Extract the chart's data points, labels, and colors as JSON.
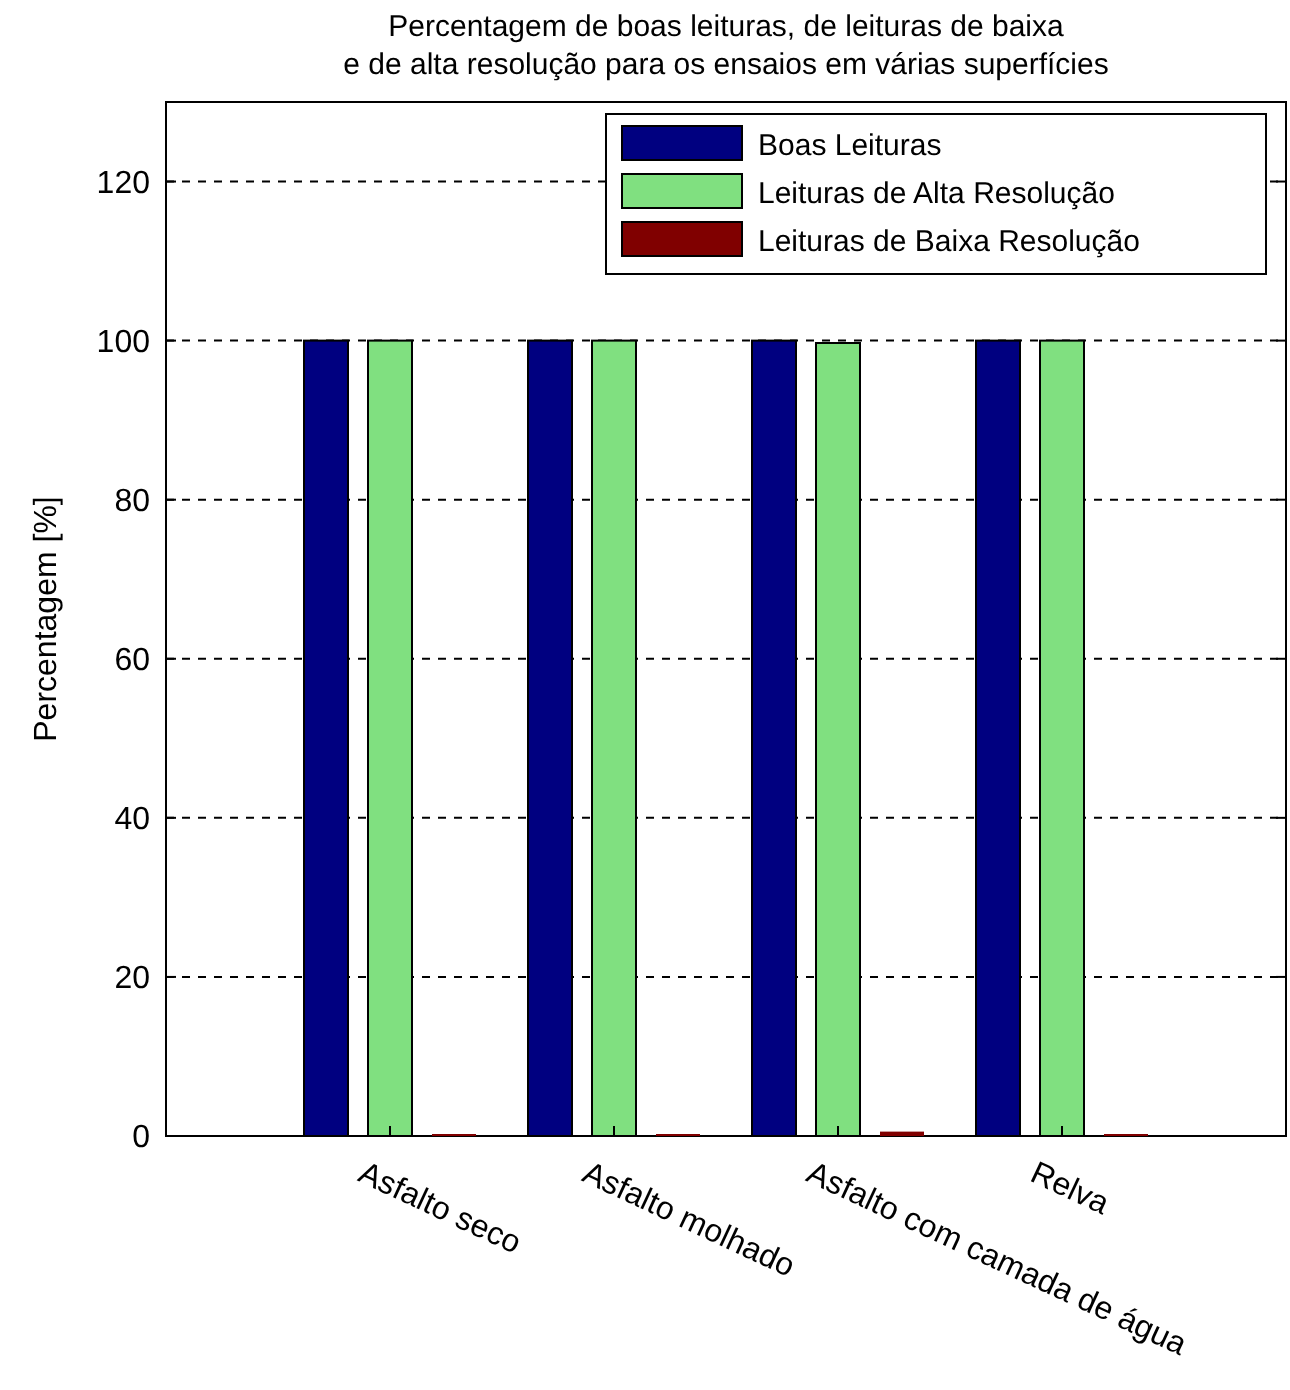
{
  "chart_data": {
    "type": "bar",
    "title": "Percentagem de boas leituras, de leituras de baixa\ne de alta resolução para os ensaios em várias superfícies",
    "ylabel": "Percentagem [%]",
    "categories": [
      "Asfalto seco",
      "Asfalto molhado",
      "Asfalto com camada de água",
      "Relva"
    ],
    "series": [
      {
        "name": "Boas Leituras",
        "color": "#000080",
        "values": [
          100,
          100,
          100,
          100
        ]
      },
      {
        "name": "Leituras de Alta Resolução",
        "color": "#80e080",
        "values": [
          100,
          100,
          99.7,
          100
        ]
      },
      {
        "name": "Leituras de Baixa Resolução",
        "color": "#800000",
        "values": [
          0,
          0,
          0.3,
          0
        ]
      }
    ],
    "ylim": [
      0,
      130
    ],
    "yticks": [
      0,
      20,
      40,
      60,
      80,
      100,
      120
    ],
    "grid": "y",
    "legend": "top right"
  }
}
